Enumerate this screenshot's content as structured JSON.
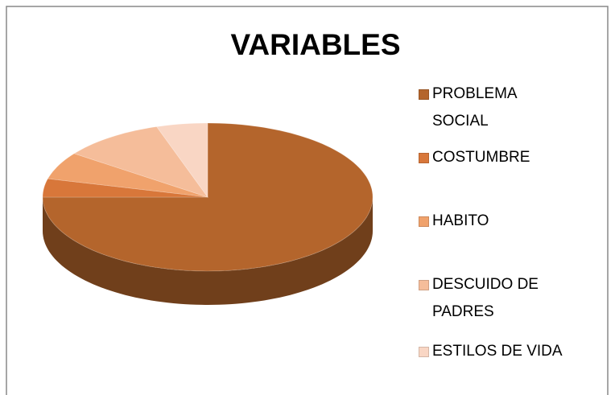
{
  "chart_data": {
    "type": "pie",
    "title": "VARIABLES",
    "categories": [
      "PROBLEMA SOCIAL",
      "COSTUMBRE",
      "HABITO",
      "DESCUIDO DE PADRES",
      "ESTILOS DE VIDA"
    ],
    "values": [
      75,
      4,
      6,
      10,
      5
    ],
    "colors": [
      "#b4652c",
      "#d8773a",
      "#f0a26c",
      "#f5bd9a",
      "#f9d6c4"
    ],
    "legend": "right"
  }
}
